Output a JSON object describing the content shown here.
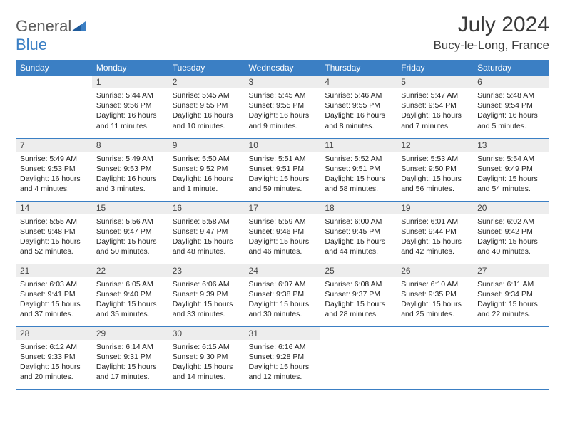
{
  "logo": {
    "text_a": "General",
    "text_b": "Blue"
  },
  "title": "July 2024",
  "location": "Bucy-le-Long, France",
  "colors": {
    "brand_blue": "#3b7fc4",
    "header_text": "#ffffff",
    "daynum_bg": "#ededed",
    "text": "#3a3a3a"
  },
  "weekdays": [
    "Sunday",
    "Monday",
    "Tuesday",
    "Wednesday",
    "Thursday",
    "Friday",
    "Saturday"
  ],
  "start_offset": 1,
  "days": [
    {
      "n": 1,
      "sunrise": "5:44 AM",
      "sunset": "9:56 PM",
      "daylight": "16 hours and 11 minutes."
    },
    {
      "n": 2,
      "sunrise": "5:45 AM",
      "sunset": "9:55 PM",
      "daylight": "16 hours and 10 minutes."
    },
    {
      "n": 3,
      "sunrise": "5:45 AM",
      "sunset": "9:55 PM",
      "daylight": "16 hours and 9 minutes."
    },
    {
      "n": 4,
      "sunrise": "5:46 AM",
      "sunset": "9:55 PM",
      "daylight": "16 hours and 8 minutes."
    },
    {
      "n": 5,
      "sunrise": "5:47 AM",
      "sunset": "9:54 PM",
      "daylight": "16 hours and 7 minutes."
    },
    {
      "n": 6,
      "sunrise": "5:48 AM",
      "sunset": "9:54 PM",
      "daylight": "16 hours and 5 minutes."
    },
    {
      "n": 7,
      "sunrise": "5:49 AM",
      "sunset": "9:53 PM",
      "daylight": "16 hours and 4 minutes."
    },
    {
      "n": 8,
      "sunrise": "5:49 AM",
      "sunset": "9:53 PM",
      "daylight": "16 hours and 3 minutes."
    },
    {
      "n": 9,
      "sunrise": "5:50 AM",
      "sunset": "9:52 PM",
      "daylight": "16 hours and 1 minute."
    },
    {
      "n": 10,
      "sunrise": "5:51 AM",
      "sunset": "9:51 PM",
      "daylight": "15 hours and 59 minutes."
    },
    {
      "n": 11,
      "sunrise": "5:52 AM",
      "sunset": "9:51 PM",
      "daylight": "15 hours and 58 minutes."
    },
    {
      "n": 12,
      "sunrise": "5:53 AM",
      "sunset": "9:50 PM",
      "daylight": "15 hours and 56 minutes."
    },
    {
      "n": 13,
      "sunrise": "5:54 AM",
      "sunset": "9:49 PM",
      "daylight": "15 hours and 54 minutes."
    },
    {
      "n": 14,
      "sunrise": "5:55 AM",
      "sunset": "9:48 PM",
      "daylight": "15 hours and 52 minutes."
    },
    {
      "n": 15,
      "sunrise": "5:56 AM",
      "sunset": "9:47 PM",
      "daylight": "15 hours and 50 minutes."
    },
    {
      "n": 16,
      "sunrise": "5:58 AM",
      "sunset": "9:47 PM",
      "daylight": "15 hours and 48 minutes."
    },
    {
      "n": 17,
      "sunrise": "5:59 AM",
      "sunset": "9:46 PM",
      "daylight": "15 hours and 46 minutes."
    },
    {
      "n": 18,
      "sunrise": "6:00 AM",
      "sunset": "9:45 PM",
      "daylight": "15 hours and 44 minutes."
    },
    {
      "n": 19,
      "sunrise": "6:01 AM",
      "sunset": "9:44 PM",
      "daylight": "15 hours and 42 minutes."
    },
    {
      "n": 20,
      "sunrise": "6:02 AM",
      "sunset": "9:42 PM",
      "daylight": "15 hours and 40 minutes."
    },
    {
      "n": 21,
      "sunrise": "6:03 AM",
      "sunset": "9:41 PM",
      "daylight": "15 hours and 37 minutes."
    },
    {
      "n": 22,
      "sunrise": "6:05 AM",
      "sunset": "9:40 PM",
      "daylight": "15 hours and 35 minutes."
    },
    {
      "n": 23,
      "sunrise": "6:06 AM",
      "sunset": "9:39 PM",
      "daylight": "15 hours and 33 minutes."
    },
    {
      "n": 24,
      "sunrise": "6:07 AM",
      "sunset": "9:38 PM",
      "daylight": "15 hours and 30 minutes."
    },
    {
      "n": 25,
      "sunrise": "6:08 AM",
      "sunset": "9:37 PM",
      "daylight": "15 hours and 28 minutes."
    },
    {
      "n": 26,
      "sunrise": "6:10 AM",
      "sunset": "9:35 PM",
      "daylight": "15 hours and 25 minutes."
    },
    {
      "n": 27,
      "sunrise": "6:11 AM",
      "sunset": "9:34 PM",
      "daylight": "15 hours and 22 minutes."
    },
    {
      "n": 28,
      "sunrise": "6:12 AM",
      "sunset": "9:33 PM",
      "daylight": "15 hours and 20 minutes."
    },
    {
      "n": 29,
      "sunrise": "6:14 AM",
      "sunset": "9:31 PM",
      "daylight": "15 hours and 17 minutes."
    },
    {
      "n": 30,
      "sunrise": "6:15 AM",
      "sunset": "9:30 PM",
      "daylight": "15 hours and 14 minutes."
    },
    {
      "n": 31,
      "sunrise": "6:16 AM",
      "sunset": "9:28 PM",
      "daylight": "15 hours and 12 minutes."
    }
  ],
  "labels": {
    "sunrise": "Sunrise:",
    "sunset": "Sunset:",
    "daylight": "Daylight:"
  }
}
